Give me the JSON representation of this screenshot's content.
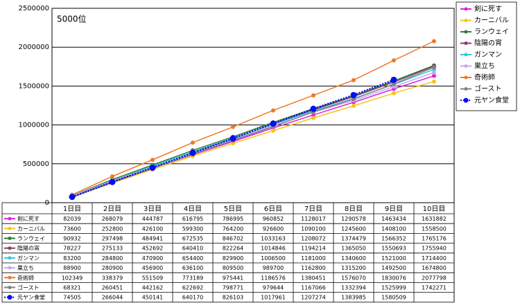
{
  "chart_data": {
    "type": "line",
    "annotation": "5000位",
    "categories": [
      "1日目",
      "2日目",
      "3日目",
      "4日目",
      "5日目",
      "6日目",
      "7日目",
      "8日目",
      "9日目",
      "10日目"
    ],
    "ylim": [
      0,
      2500000
    ],
    "yticks": [
      0,
      500000,
      1000000,
      1500000,
      2000000,
      2500000
    ],
    "grid": true,
    "series": [
      {
        "name": "剣に死す",
        "color": "#e020e0",
        "values": [
          82039,
          268079,
          444787,
          616795,
          786995,
          960852,
          1128017,
          1290578,
          1463434,
          1631882
        ]
      },
      {
        "name": "カーニバル",
        "color": "#f5c518",
        "values": [
          73600,
          252800,
          426100,
          599300,
          764200,
          926600,
          1090100,
          1245600,
          1408100,
          1558500
        ]
      },
      {
        "name": "ランウェイ",
        "color": "#2e7d32",
        "values": [
          90932,
          297498,
          484941,
          672535,
          846702,
          1033163,
          1208072,
          1374479,
          1566352,
          1765176
        ]
      },
      {
        "name": "陰陽の宵",
        "color": "#8b3a62",
        "values": [
          78227,
          275133,
          452692,
          640410,
          822264,
          1014846,
          1194214,
          1365050,
          1550693,
          1755940
        ]
      },
      {
        "name": "ガンマン",
        "color": "#30c8e0",
        "values": [
          83200,
          284800,
          470900,
          654400,
          829900,
          1006500,
          1181000,
          1340600,
          1521000,
          1714400
        ]
      },
      {
        "name": "巣立ち",
        "color": "#c4a8f0",
        "values": [
          88900,
          280900,
          456900,
          636100,
          809500,
          989700,
          1162800,
          1315200,
          1492500,
          1674800
        ]
      },
      {
        "name": "奇術師",
        "color": "#f07828",
        "values": [
          102349,
          338379,
          551509,
          773189,
          975441,
          1186576,
          1380451,
          1576070,
          1830076,
          2077798
        ]
      },
      {
        "name": "ゴースト",
        "color": "#808080",
        "values": [
          68321,
          260451,
          442162,
          622692,
          798771,
          979644,
          1167066,
          1332394,
          1525999,
          1742271
        ]
      },
      {
        "name": "元ヤン食堂",
        "color": "#0010f0",
        "dashed": true,
        "values": [
          74505,
          266044,
          450141,
          640170,
          826103,
          1017961,
          1207274,
          1383985,
          1580509,
          null
        ]
      }
    ]
  }
}
